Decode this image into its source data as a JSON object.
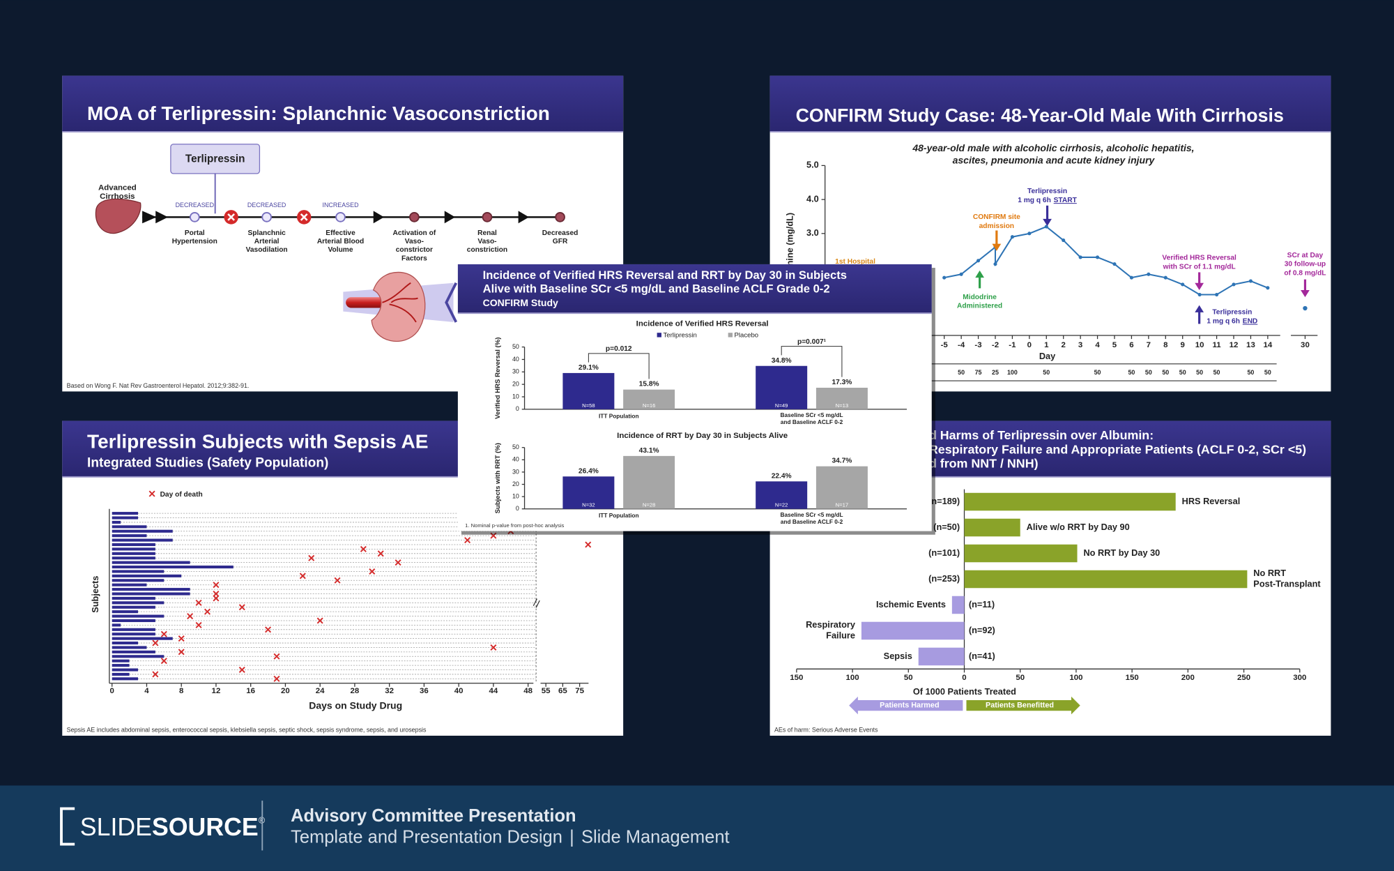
{
  "footer": {
    "logo_a": "SLIDE",
    "logo_b": "SOURCE",
    "logo_mark": "®",
    "title": "Advisory Committee Presentation",
    "subtitle": "Template and Presentation Design",
    "separator": "|",
    "subtitle_b": "Slide Management"
  },
  "slides": {
    "moa": {
      "title": "MOA of Terlipressin: Splanchnic Vasoconstriction",
      "drug": "Terlipressin",
      "start": [
        "Advanced",
        "Cirrhosis"
      ],
      "steps": [
        {
          "status": "DECREASED",
          "label": [
            "Portal",
            "Hypertension"
          ]
        },
        {
          "status": "DECREASED",
          "label": [
            "Splanchnic",
            "Arterial",
            "Vasodilation"
          ]
        },
        {
          "status": "INCREASED",
          "label": [
            "Effective",
            "Arterial Blood",
            "Volume"
          ]
        },
        {
          "label": [
            "Activation of",
            "Vaso-",
            "constrictor",
            "Factors"
          ]
        },
        {
          "label": [
            "Renal",
            "Vaso-",
            "constriction"
          ]
        },
        {
          "label": [
            "Decreased",
            "GFR"
          ]
        }
      ],
      "note": "Based on Wong F. Nat Rev Gastroenterol Hepatol. 2012;9:382-91."
    },
    "case": {
      "title": "CONFIRM Study Case: 48-Year-Old Male With Cirrhosis",
      "subtitle": [
        "48-year-old male with alcoholic cirrhosis, alcoholic hepatitis,",
        "ascites, pneumonia and acute kidney injury"
      ],
      "chart": {
        "type": "line",
        "ylabel": "Serum Creatinine (mg/dL)",
        "xlabel": "Day",
        "x": [
          -5,
          -4,
          -3,
          -2,
          -2,
          -1,
          0,
          1,
          2,
          3,
          4,
          5,
          6,
          7,
          8,
          9,
          10,
          11,
          12,
          13,
          14
        ],
        "series": [
          {
            "color": "#2e74b5",
            "values": [
              1.7,
              1.8,
              2.2,
              2.6,
              2.1,
              2.9,
              3.0,
              3.2,
              2.8,
              2.3,
              2.3,
              2.1,
              1.7,
              1.8,
              1.7,
              1.5,
              1.2,
              1.2,
              1.5,
              1.6,
              1.4
            ]
          }
        ],
        "xlim": [
          -12,
          14
        ],
        "ylim": [
          0,
          5
        ],
        "xticks": [
          -5,
          -4,
          -3,
          -2,
          -1,
          0,
          1,
          2,
          3,
          4,
          5,
          6,
          7,
          8,
          9,
          10,
          11,
          12,
          13,
          14
        ],
        "yticks": [
          {
            "value": 5,
            "label": "5.0"
          },
          {
            "value": 4,
            "label": "4.0"
          },
          {
            "value": 3,
            "label": "3.0"
          }
        ],
        "followup": {
          "x": 30,
          "value": 0.8
        },
        "dose": {
          "x": [
            -4,
            -3,
            -2,
            -1,
            1,
            4,
            6,
            7,
            8,
            9,
            10,
            11,
            13,
            14
          ],
          "values": [
            50,
            75,
            25,
            100,
            50,
            50,
            50,
            50,
            50,
            50,
            50,
            50,
            50,
            50
          ]
        },
        "annotations": [
          {
            "color": "#d98a1a",
            "lines": [
              "1st Hospital"
            ]
          },
          {
            "color": "#e07a10",
            "lines": [
              "CONFIRM site",
              "admission"
            ]
          },
          {
            "color": "#2fa04a",
            "lines": [
              "Midodrine",
              "Administered"
            ]
          },
          {
            "color": "#3a2f9a",
            "lines": [
              "Terlipressin",
              "1 mg q 6h"
            ],
            "key": "START"
          },
          {
            "color": "#a3289a",
            "lines": [
              "Verified HRS Reversal",
              "with SCr of 1.1 mg/dL"
            ]
          },
          {
            "color": "#3a2f9a",
            "lines": [
              "Terlipressin",
              "1 mg q 6h"
            ],
            "key": "END"
          },
          {
            "color": "#a3289a",
            "lines": [
              "SCr at Day",
              "30 follow-up",
              "of 0.8 mg/dL"
            ]
          }
        ]
      }
    },
    "sepsis": {
      "title": "Terlipressin Subjects with Sepsis AE",
      "subtitle": "Integrated Studies (Safety Population)",
      "chart": {
        "type": "bar",
        "ylabel": "Subjects",
        "xlabel": "Days on Study Drug",
        "xlim": [
          0,
          48
        ],
        "xticks": [
          0,
          4,
          8,
          12,
          16,
          20,
          24,
          28,
          32,
          36,
          40,
          44,
          48
        ],
        "break_ticks": [
          55,
          65,
          75
        ],
        "color": "#2e2a8e",
        "values": [
          3,
          3,
          1,
          4,
          7,
          4,
          7,
          5,
          5,
          5,
          5,
          9,
          14,
          6,
          8,
          6,
          4,
          9,
          9,
          5,
          6,
          5,
          3,
          6,
          5,
          1,
          5,
          5,
          7,
          3,
          4,
          5,
          6,
          2,
          2,
          3,
          2,
          3
        ],
        "series": [
          {
            "name": "Day of death",
            "color": "#d42a2a",
            "values": [
              null,
              null,
              null,
              null,
              46,
              44,
              41,
              80,
              29,
              31,
              23,
              33,
              null,
              30,
              22,
              26,
              12,
              null,
              12,
              12,
              10,
              15,
              11,
              9,
              24,
              10,
              18,
              6,
              8,
              5,
              44,
              8,
              19,
              6,
              null,
              15,
              5,
              19
            ]
          }
        ]
      },
      "note": "Sepsis AE includes abdominal sepsis, enterococcal sepsis, klebsiella sepsis, septic shock, sepsis syndrome, sepsis, and urosepsis"
    },
    "benefit": {
      "title": [
        "d Harms of Terlipressin over Albumin:",
        "Respiratory Failure and Appropriate Patients (ACLF 0-2, SCr <5)",
        "d from NNT / NNH)"
      ],
      "chart": {
        "type": "bar",
        "xlabel": "Of 1000 Patients Treated",
        "xlim": [
          -150,
          300
        ],
        "xticks": [
          {
            "value": -150,
            "label": "150"
          },
          {
            "value": -100,
            "label": "100"
          },
          {
            "value": -50,
            "label": "50"
          },
          0,
          50,
          100,
          150,
          200,
          250,
          300
        ],
        "series": [
          {
            "name": "Patients Benefitted",
            "color": "#8aa329",
            "direction": "right",
            "categories": [
              [
                "HRS Reversal"
              ],
              [
                "Alive w/o RRT by Day 90"
              ],
              [
                "No RRT by Day 30"
              ],
              [
                "No RRT",
                "Post-Transplant"
              ]
            ],
            "values": [
              189,
              50,
              101,
              253
            ],
            "value_labels": [
              "(n=189)",
              "(n=50)",
              "(n=101)",
              "(n=253)"
            ]
          },
          {
            "name": "Patients Harmed",
            "color": "#a79be0",
            "direction": "left",
            "categories": [
              [
                "Ischemic Events"
              ],
              [
                "Respiratory",
                "Failure"
              ],
              [
                "Sepsis"
              ]
            ],
            "values": [
              11,
              92,
              41
            ],
            "value_labels": [
              "(n=11)",
              "(n=92)",
              "(n=41)"
            ]
          }
        ]
      },
      "note": "AEs of harm: Serious Adverse Events"
    },
    "overlay": {
      "title": [
        "Incidence of Verified HRS Reversal and RRT by Day 30 in Subjects",
        "Alive with Baseline SCr <5 mg/dL and Baseline ACLF Grade 0-2",
        "CONFIRM Study"
      ],
      "charts": [
        {
          "type": "bar",
          "title": "Incidence of Verified HRS Reversal",
          "ylabel": "Verified HRS Reversal (%)",
          "legend": true,
          "categories": [
            [
              "ITT Population"
            ],
            [
              "Baseline SCr <5 mg/dL",
              "and Baseline ACLF 0-2"
            ]
          ],
          "series": [
            {
              "name": "Terlipressin",
              "color": "#2e2a8e",
              "values": [
                29.1,
                34.8
              ],
              "value_labels": [
                "29.1%",
                "34.8%"
              ],
              "n_labels": [
                "N=58",
                "N=49"
              ]
            },
            {
              "name": "Placebo",
              "color": "#a6a6a6",
              "values": [
                15.8,
                17.3
              ],
              "value_labels": [
                "15.8%",
                "17.3%"
              ],
              "n_labels": [
                "N=16",
                "N=13"
              ]
            }
          ],
          "ylim": [
            0,
            50
          ],
          "yticks": [
            0,
            10,
            20,
            30,
            40,
            50
          ],
          "pvalues": [
            "p=0.012",
            "p=0.007¹"
          ]
        },
        {
          "type": "bar",
          "title": "Incidence of RRT by Day 30 in Subjects Alive",
          "ylabel": "Subjects with RRT (%)",
          "legend": false,
          "categories": [
            [
              "ITT Population"
            ],
            [
              "Baseline SCr <5 mg/dL",
              "and Baseline ACLF 0-2"
            ]
          ],
          "series": [
            {
              "name": "Terlipressin",
              "color": "#2e2a8e",
              "values": [
                26.4,
                22.4
              ],
              "value_labels": [
                "26.4%",
                "22.4%"
              ],
              "n_labels": [
                "N=32",
                "N=22"
              ]
            },
            {
              "name": "Placebo",
              "color": "#a6a6a6",
              "values": [
                43.1,
                34.7
              ],
              "value_labels": [
                "43.1%",
                "34.7%"
              ],
              "n_labels": [
                "N=28",
                "N=17"
              ]
            }
          ],
          "ylim": [
            0,
            50
          ],
          "yticks": [
            0,
            10,
            20,
            30,
            40,
            50
          ]
        }
      ],
      "note": "1. Nominal p-value from post-hoc analysis"
    }
  }
}
